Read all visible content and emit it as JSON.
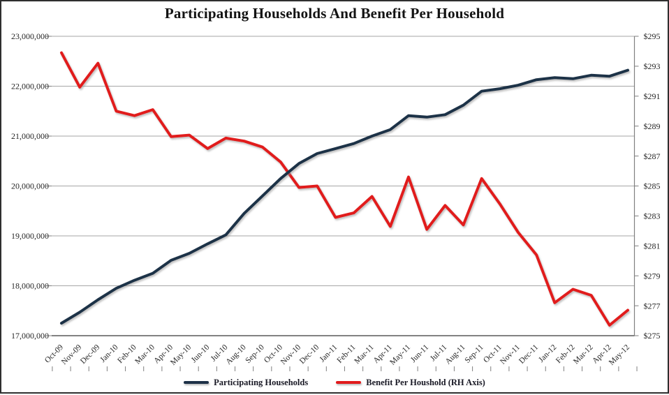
{
  "title": "Participating Households And Benefit Per Household",
  "legend": [
    {
      "label": "Participating Households",
      "color": "#1d3147"
    },
    {
      "label": "Benefit Per Houshold (RH Axis)",
      "color": "#e11a1c"
    }
  ],
  "axes": {
    "left_ticks": [
      "23,000,000",
      "22,000,000",
      "21,000,000",
      "20,000,000",
      "19,000,000",
      "18,000,000",
      "17,000,000"
    ],
    "right_ticks": [
      "$295",
      "$293",
      "$291",
      "$289",
      "$287",
      "$285",
      "$283",
      "$281",
      "$279",
      "$277",
      "$275"
    ]
  },
  "colors": {
    "households_line": "#1d3147",
    "benefit_line": "#e11a1c",
    "gridline": "#a6a6a6",
    "axis_line": "#595959",
    "tick": "#7f7f7f",
    "label_text": "#262626"
  },
  "chart_data": {
    "type": "line",
    "title": "Participating Households And Benefit Per Household",
    "categories": [
      "Oct-09",
      "Nov-09",
      "Dec-09",
      "Jan-10",
      "Feb-10",
      "Mar-10",
      "Apr-10",
      "May-10",
      "Jun-10",
      "Jul-10",
      "Aug-10",
      "Sep-10",
      "Oct-10",
      "Nov-10",
      "Dec-10",
      "Jan-11",
      "Feb-11",
      "Mar-11",
      "Apr-11",
      "May-11",
      "Jun-11",
      "Jul-11",
      "Aug-11",
      "Sep-11",
      "Oct-11",
      "Nov-11",
      "Dec-11",
      "Jan-12",
      "Feb-12",
      "Mar-12",
      "Apr-12",
      "May-12"
    ],
    "series": [
      {
        "name": "Participating Households",
        "axis": "left",
        "color": "#1d3147",
        "values": [
          17250000,
          17470000,
          17720000,
          17950000,
          18110000,
          18250000,
          18510000,
          18650000,
          18840000,
          19020000,
          19450000,
          19800000,
          20150000,
          20450000,
          20650000,
          20750000,
          20850000,
          21000000,
          21130000,
          21410000,
          21380000,
          21430000,
          21620000,
          21900000,
          21950000,
          22020000,
          22130000,
          22170000,
          22150000,
          22220000,
          22200000,
          22320000
        ]
      },
      {
        "name": "Benefit Per Houshold (RH Axis)",
        "axis": "right",
        "color": "#e11a1c",
        "values": [
          293.9,
          291.6,
          293.2,
          290.0,
          289.7,
          290.1,
          288.3,
          288.4,
          287.5,
          288.2,
          288.0,
          287.6,
          286.6,
          284.9,
          285.0,
          282.9,
          283.2,
          284.3,
          282.3,
          285.6,
          282.1,
          283.7,
          282.4,
          285.5,
          283.8,
          281.9,
          280.4,
          277.2,
          278.1,
          277.7,
          275.7,
          276.7
        ]
      }
    ],
    "y_left": {
      "min": 17000000,
      "max": 23000000,
      "tick_step": 1000000
    },
    "y_right": {
      "min": 275,
      "max": 295,
      "tick_step": 2
    },
    "grid": true,
    "legend_position": "bottom"
  }
}
